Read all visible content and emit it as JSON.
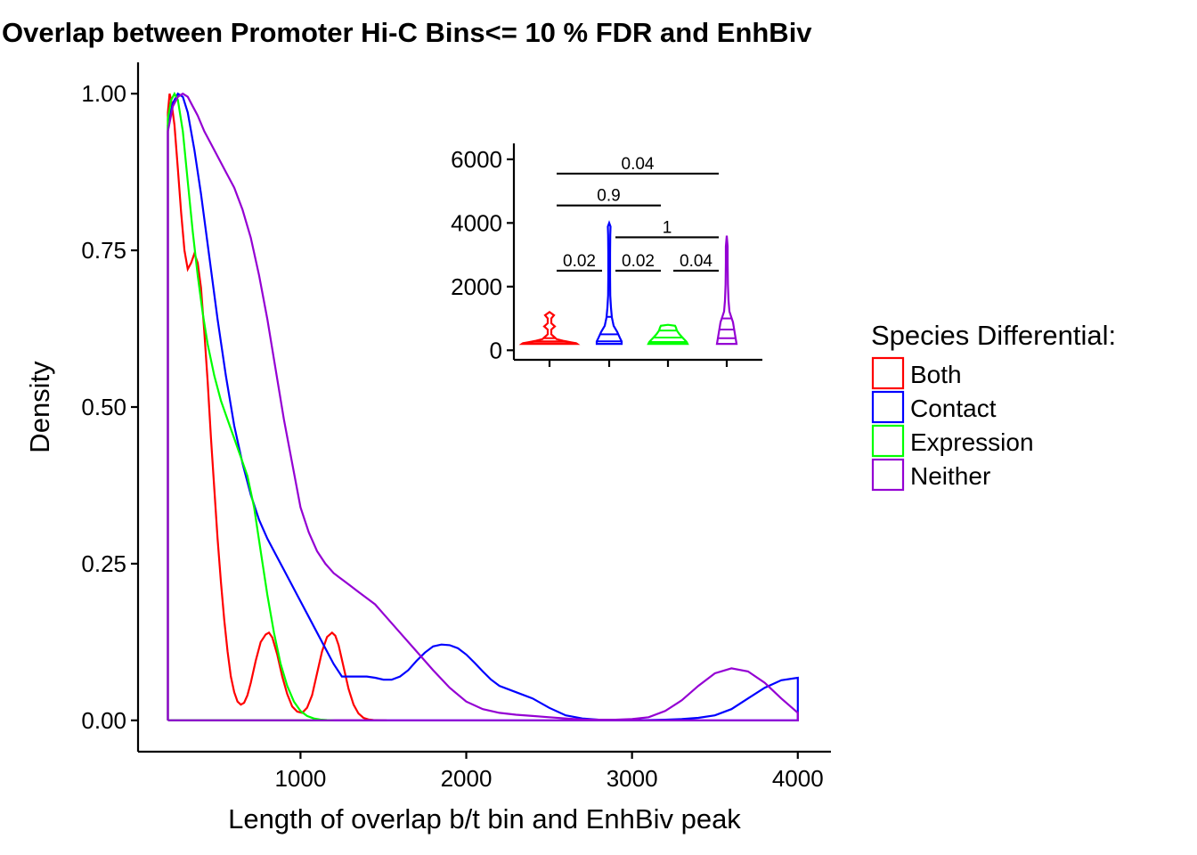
{
  "chart_data": [
    {
      "type": "area",
      "title": "Overlap between Promoter Hi-C Bins<= 10 % FDR and EnhBiv",
      "xlabel": "Length of overlap b/t bin and EnhBiv peak",
      "ylabel": "Density",
      "xlim": [
        20,
        4200
      ],
      "ylim": [
        -0.05,
        1.05
      ],
      "x_ticks": [
        1000,
        2000,
        3000,
        4000
      ],
      "x_tick_labels": [
        "1000",
        "2000",
        "3000",
        "4000"
      ],
      "y_ticks": [
        0,
        0.25,
        0.5,
        0.75,
        1.0
      ],
      "y_tick_labels": [
        "0.00",
        "0.25",
        "0.50",
        "0.75",
        "1.00"
      ],
      "grid": false,
      "legend": {
        "title": "Species Differential:",
        "position": "right",
        "entries": [
          "Both",
          "Contact",
          "Expression",
          "Neither"
        ]
      },
      "series": [
        {
          "name": "Both",
          "color": "#ff0000",
          "x": [
            200,
            210,
            220,
            240,
            260,
            280,
            300,
            320,
            340,
            360,
            380,
            400,
            420,
            440,
            460,
            480,
            500,
            520,
            540,
            560,
            580,
            600,
            620,
            640,
            660,
            680,
            700,
            730,
            760,
            790,
            810,
            830,
            860,
            890,
            920,
            950,
            980,
            1010,
            1040,
            1070,
            1100,
            1130,
            1160,
            1190,
            1210,
            1230,
            1260,
            1290,
            1320,
            1350,
            1380,
            1410,
            1440,
            1480,
            1520
          ],
          "y": [
            0.97,
            1.0,
            0.99,
            0.95,
            0.88,
            0.81,
            0.75,
            0.72,
            0.73,
            0.745,
            0.73,
            0.69,
            0.62,
            0.54,
            0.45,
            0.37,
            0.29,
            0.22,
            0.16,
            0.11,
            0.07,
            0.045,
            0.03,
            0.025,
            0.028,
            0.04,
            0.06,
            0.095,
            0.125,
            0.137,
            0.14,
            0.132,
            0.105,
            0.07,
            0.042,
            0.022,
            0.014,
            0.012,
            0.02,
            0.04,
            0.075,
            0.11,
            0.133,
            0.14,
            0.135,
            0.12,
            0.085,
            0.05,
            0.025,
            0.011,
            0.004,
            0.0015,
            0.0005,
            0.0001,
            0
          ]
        },
        {
          "name": "Contact",
          "color": "#0000ff",
          "x": [
            200,
            230,
            260,
            290,
            320,
            360,
            400,
            450,
            500,
            550,
            600,
            650,
            700,
            750,
            800,
            850,
            900,
            950,
            1000,
            1050,
            1100,
            1150,
            1200,
            1250,
            1300,
            1350,
            1400,
            1450,
            1500,
            1550,
            1600,
            1650,
            1700,
            1750,
            1800,
            1850,
            1900,
            1950,
            2000,
            2050,
            2100,
            2150,
            2200,
            2300,
            2400,
            2500,
            2600,
            2700,
            2800,
            2900,
            3000,
            3100,
            3200,
            3300,
            3400,
            3500,
            3600,
            3700,
            3800,
            3900,
            4000
          ],
          "y": [
            0.95,
            0.985,
            1.0,
            0.995,
            0.97,
            0.91,
            0.84,
            0.74,
            0.64,
            0.55,
            0.47,
            0.41,
            0.36,
            0.32,
            0.29,
            0.265,
            0.24,
            0.215,
            0.19,
            0.165,
            0.14,
            0.115,
            0.09,
            0.07,
            0.07,
            0.07,
            0.07,
            0.068,
            0.065,
            0.065,
            0.07,
            0.08,
            0.095,
            0.108,
            0.118,
            0.121,
            0.12,
            0.115,
            0.105,
            0.092,
            0.078,
            0.065,
            0.055,
            0.045,
            0.035,
            0.02,
            0.008,
            0.003,
            0.001,
            0.0005,
            0.0003,
            0.0005,
            0.001,
            0.002,
            0.004,
            0.008,
            0.018,
            0.035,
            0.052,
            0.064,
            0.068
          ]
        },
        {
          "name": "Expression",
          "color": "#00ff00",
          "x": [
            200,
            220,
            240,
            260,
            290,
            320,
            350,
            380,
            410,
            440,
            480,
            520,
            560,
            600,
            640,
            680,
            720,
            760,
            800,
            840,
            880,
            920,
            960,
            1000,
            1040,
            1080,
            1120,
            1160,
            1200
          ],
          "y": [
            0.96,
            0.99,
            1.0,
            0.99,
            0.94,
            0.86,
            0.78,
            0.71,
            0.65,
            0.6,
            0.55,
            0.51,
            0.48,
            0.45,
            0.42,
            0.39,
            0.34,
            0.27,
            0.2,
            0.14,
            0.09,
            0.055,
            0.03,
            0.015,
            0.007,
            0.003,
            0.0012,
            0.0004,
            0
          ]
        },
        {
          "name": "Neither",
          "color": "#9400d3",
          "x": [
            200,
            230,
            260,
            290,
            320,
            350,
            380,
            420,
            460,
            500,
            550,
            600,
            650,
            700,
            750,
            800,
            850,
            900,
            950,
            1000,
            1050,
            1100,
            1150,
            1200,
            1250,
            1300,
            1350,
            1400,
            1450,
            1500,
            1600,
            1700,
            1800,
            1900,
            2000,
            2100,
            2200,
            2300,
            2400,
            2500,
            2600,
            2700,
            2800,
            2900,
            3000,
            3100,
            3200,
            3300,
            3400,
            3500,
            3600,
            3700,
            3800,
            3900,
            4000
          ],
          "y": [
            0.94,
            0.98,
            0.995,
            1.0,
            0.995,
            0.98,
            0.965,
            0.94,
            0.92,
            0.9,
            0.875,
            0.85,
            0.815,
            0.77,
            0.71,
            0.64,
            0.56,
            0.48,
            0.41,
            0.34,
            0.3,
            0.27,
            0.25,
            0.235,
            0.225,
            0.215,
            0.205,
            0.195,
            0.185,
            0.17,
            0.14,
            0.11,
            0.08,
            0.052,
            0.03,
            0.018,
            0.012,
            0.009,
            0.007,
            0.005,
            0.003,
            0.0015,
            0.001,
            0.001,
            0.002,
            0.005,
            0.015,
            0.032,
            0.055,
            0.075,
            0.083,
            0.078,
            0.06,
            0.035,
            0.012
          ]
        }
      ]
    },
    {
      "type": "violin",
      "ylim": [
        -300,
        6500
      ],
      "y_ticks": [
        0,
        2000,
        4000,
        6000
      ],
      "y_tick_labels": [
        "0",
        "2000",
        "4000",
        "6000"
      ],
      "categories": [
        "Both",
        "Contact",
        "Expression",
        "Neither"
      ],
      "series": [
        {
          "name": "Both",
          "color": "#ff0000",
          "min": 200,
          "max": 1200,
          "quantiles": [
            220,
            280,
            380
          ]
        },
        {
          "name": "Contact",
          "color": "#0000ff",
          "min": 200,
          "max": 4000,
          "quantiles": [
            280,
            500,
            1050
          ]
        },
        {
          "name": "Expression",
          "color": "#00ff00",
          "min": 200,
          "max": 800,
          "quantiles": [
            260,
            400,
            620
          ]
        },
        {
          "name": "Neither",
          "color": "#9400d3",
          "min": 200,
          "max": 3600,
          "quantiles": [
            380,
            650,
            1000
          ]
        }
      ],
      "comparisons": [
        {
          "groups": [
            "Both",
            "Contact"
          ],
          "label": "0.02",
          "y": 2500
        },
        {
          "groups": [
            "Contact",
            "Expression"
          ],
          "label": "0.02",
          "y": 2500
        },
        {
          "groups": [
            "Expression",
            "Neither"
          ],
          "label": "0.04",
          "y": 2500
        },
        {
          "groups": [
            "Contact",
            "Neither"
          ],
          "label": "1",
          "y": 3550
        },
        {
          "groups": [
            "Both",
            "Expression"
          ],
          "label": "0.9",
          "y": 4550
        },
        {
          "groups": [
            "Both",
            "Neither"
          ],
          "label": "0.04",
          "y": 5550
        }
      ]
    }
  ]
}
